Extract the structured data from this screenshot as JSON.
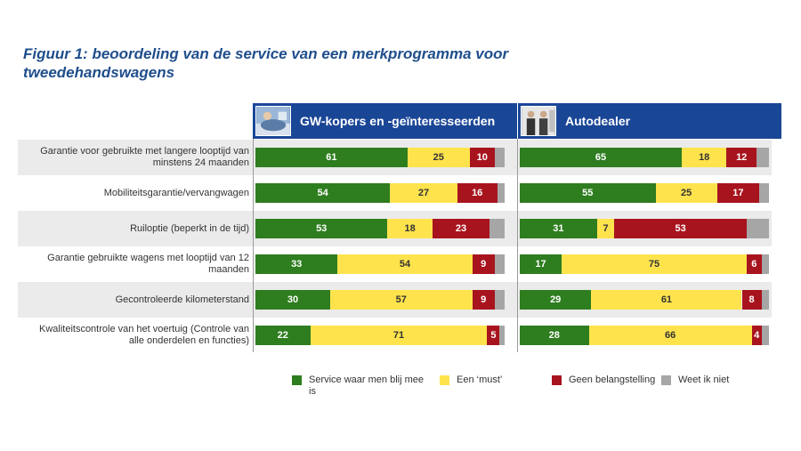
{
  "title": "Figuur 1: beoordeling van de service van een merkprogramma voor tweedehandswagens",
  "colors": {
    "header": "#1a4696",
    "service": "#2e7d1f",
    "must": "#ffe34d",
    "geen": "#a8141e",
    "weet": "#a6a6a6"
  },
  "chart_data": {
    "type": "bar",
    "stacked": true,
    "orientation": "horizontal",
    "title": "Figuur 1: beoordeling van de service van een merkprogramma voor tweedehandswagens",
    "categories": [
      "Garantie voor gebruikte met langere looptijd van minstens 24 maanden",
      "Mobiliteitsgarantie/vervangwagen",
      "Ruiloptie (beperkt in de tijd)",
      "Garantie gebruikte wagens met looptijd van 12 maanden",
      "Gecontroleerde kilometerstand",
      "Kwaliteitscontrole van het voertuig (Controle van alle onderdelen en functies)"
    ],
    "legend": [
      "Service waar men blij mee is",
      "Een ‘must’",
      "Geen belangstelling",
      "Weet ik niet"
    ],
    "panels": [
      {
        "title": "GW-kopers en -geïnteresseerden",
        "series": [
          {
            "name": "Service waar men blij mee is",
            "values": [
              61,
              54,
              53,
              33,
              30,
              22
            ]
          },
          {
            "name": "Een ‘must’",
            "values": [
              25,
              27,
              18,
              54,
              57,
              71
            ]
          },
          {
            "name": "Geen belangstelling",
            "values": [
              10,
              16,
              23,
              9,
              9,
              5
            ]
          },
          {
            "name": "Weet ik niet",
            "values": [
              4,
              3,
              6,
              4,
              4,
              2
            ]
          }
        ]
      },
      {
        "title": "Autodealer",
        "series": [
          {
            "name": "Service waar men blij mee is",
            "values": [
              65,
              55,
              31,
              17,
              29,
              28
            ]
          },
          {
            "name": "Een ‘must’",
            "values": [
              18,
              25,
              7,
              75,
              61,
              66
            ]
          },
          {
            "name": "Geen belangstelling",
            "values": [
              12,
              17,
              53,
              6,
              8,
              4
            ]
          },
          {
            "name": "Weet ik niet",
            "values": [
              5,
              4,
              9,
              3,
              3,
              3
            ]
          }
        ]
      }
    ]
  }
}
